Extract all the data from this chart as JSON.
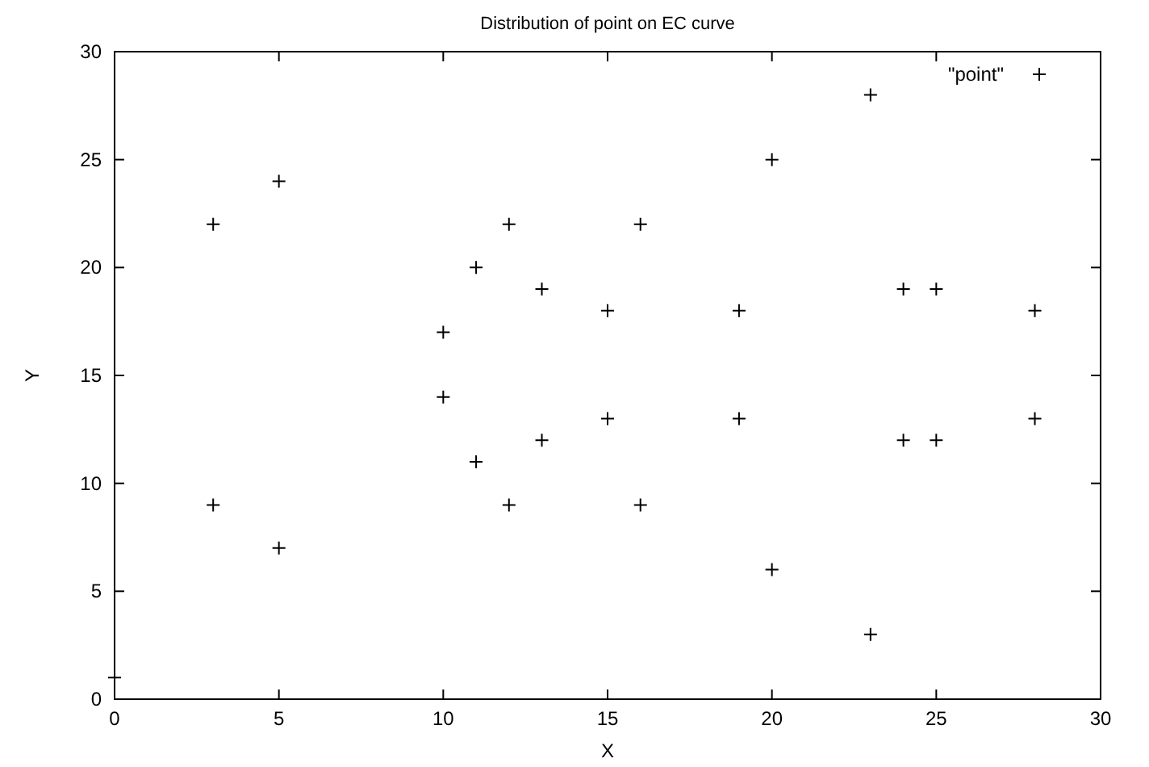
{
  "chart_data": {
    "type": "scatter",
    "title": "Distribution of point on EC curve",
    "xlabel": "X",
    "ylabel": "Y",
    "xlim": [
      0,
      30
    ],
    "ylim": [
      0,
      30
    ],
    "xticks": [
      0,
      5,
      10,
      15,
      20,
      25,
      30
    ],
    "yticks": [
      0,
      5,
      10,
      15,
      20,
      25,
      30
    ],
    "grid": false,
    "legend": "top right",
    "marker": "cross",
    "series": [
      {
        "name": "\"point\"",
        "color": "#000000",
        "x": [
          0,
          3,
          3,
          5,
          5,
          10,
          10,
          11,
          11,
          12,
          12,
          13,
          13,
          15,
          15,
          16,
          16,
          19,
          19,
          20,
          20,
          23,
          23,
          24,
          24,
          25,
          25,
          28,
          28
        ],
        "values": [
          1,
          9,
          22,
          7,
          24,
          14,
          17,
          11,
          20,
          9,
          22,
          12,
          19,
          13,
          18,
          9,
          22,
          13,
          18,
          6,
          25,
          3,
          28,
          12,
          19,
          12,
          19,
          13,
          18
        ]
      }
    ]
  }
}
